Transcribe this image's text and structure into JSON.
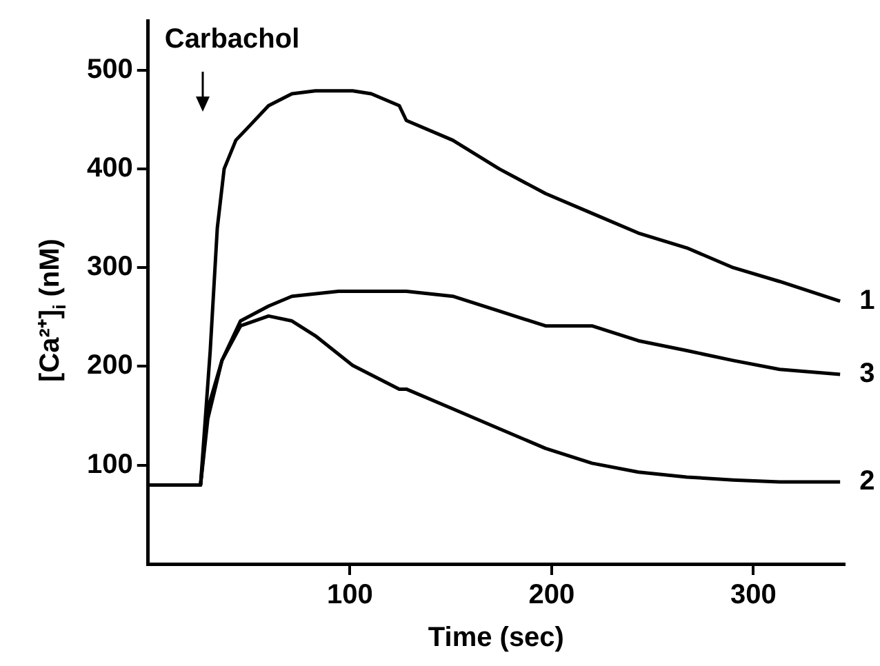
{
  "chart_data": {
    "type": "line",
    "xlabel": "Time (sec)",
    "ylabel": "[Ca²⁺]$_{i}$ (nM)",
    "xlim": [
      0,
      345
    ],
    "ylim": [
      0,
      550
    ],
    "xticks": [
      100,
      200,
      300
    ],
    "yticks": [
      100,
      200,
      300,
      400,
      500
    ],
    "grid": false,
    "legend": false,
    "marker": "none",
    "line_style": "solid",
    "annotations": [
      "Carbachol"
    ],
    "series": [
      {
        "name": "1",
        "color": "#000000",
        "x": [
          0,
          10,
          20,
          26,
          27.3,
          30.8,
          34.3,
          37.7,
          43.5,
          50.5,
          59.7,
          71.3,
          82.9,
          101.4,
          110.6,
          124.5,
          128,
          151,
          174,
          197,
          220,
          243,
          267,
          290,
          313,
          343
        ],
        "values": [
          80,
          80,
          80,
          80,
          117,
          216,
          340,
          400,
          429,
          444,
          464,
          476,
          479,
          479,
          476,
          464,
          449,
          429,
          400,
          375,
          355,
          335,
          320,
          300,
          286,
          266
        ]
      },
      {
        "name": "3",
        "color": "#000000",
        "x": [
          0,
          10,
          20,
          26,
          29.6,
          36.6,
          45.8,
          59.7,
          71.3,
          94.4,
          117.6,
          128,
          151,
          174,
          197,
          220,
          243,
          267,
          290,
          313,
          343
        ],
        "values": [
          80,
          80,
          80,
          80,
          157,
          206,
          246,
          261,
          271,
          276,
          276,
          276,
          271,
          256,
          241,
          241,
          226,
          216,
          206,
          197,
          192
        ]
      },
      {
        "name": "2",
        "color": "#000000",
        "x": [
          0,
          10,
          20,
          26,
          29.6,
          36.6,
          45.8,
          59.7,
          71.3,
          82.9,
          101.4,
          124.5,
          128,
          151,
          174,
          197,
          220,
          243,
          267,
          290,
          313,
          343
        ],
        "values": [
          80,
          80,
          80,
          80,
          147,
          206,
          241,
          251,
          246,
          231,
          201,
          177,
          177,
          157,
          137,
          117,
          102,
          93,
          88,
          85,
          83,
          83
        ]
      }
    ]
  }
}
